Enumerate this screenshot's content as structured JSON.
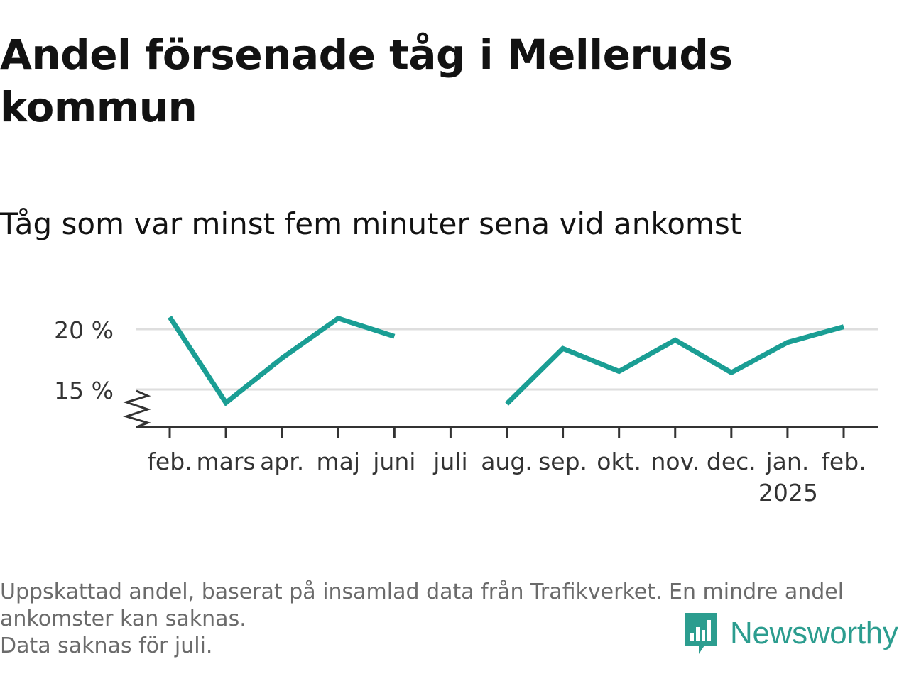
{
  "title": "Andel försenade tåg i Melleruds kommun",
  "subtitle": "Tåg som var minst fem minuter sena vid ankomst",
  "footnote": {
    "line1": "Uppskattad andel, baserat på insamlad data från Trafikverket. En mindre andel ankomster kan saknas.",
    "line2": "Data saknas för juli."
  },
  "brand": {
    "name": "Newsworthy",
    "icon": "newsworthy-logo-icon",
    "color": "#2c9d8f"
  },
  "colors": {
    "line": "#1a9e94",
    "grid": "#dedede",
    "axis": "#333333"
  },
  "chart_data": {
    "type": "line",
    "categories": [
      "feb.",
      "mars",
      "apr.",
      "maj",
      "juni",
      "juli",
      "aug.",
      "sep.",
      "okt.",
      "nov.",
      "dec.",
      "jan.",
      "feb."
    ],
    "year_label": "2025",
    "year_label_under": "jan.",
    "series": [
      {
        "values": [
          21.0,
          13.9,
          17.6,
          20.9,
          19.4,
          null,
          13.8,
          18.4,
          16.5,
          19.1,
          16.4,
          18.9,
          20.2
        ]
      }
    ],
    "y_ticks": [
      {
        "value": 15,
        "label": "15 %"
      },
      {
        "value": 20,
        "label": "20 %"
      }
    ],
    "ylim": [
      12,
      22
    ],
    "y_axis_break": true,
    "grid": true,
    "legend": "none"
  }
}
